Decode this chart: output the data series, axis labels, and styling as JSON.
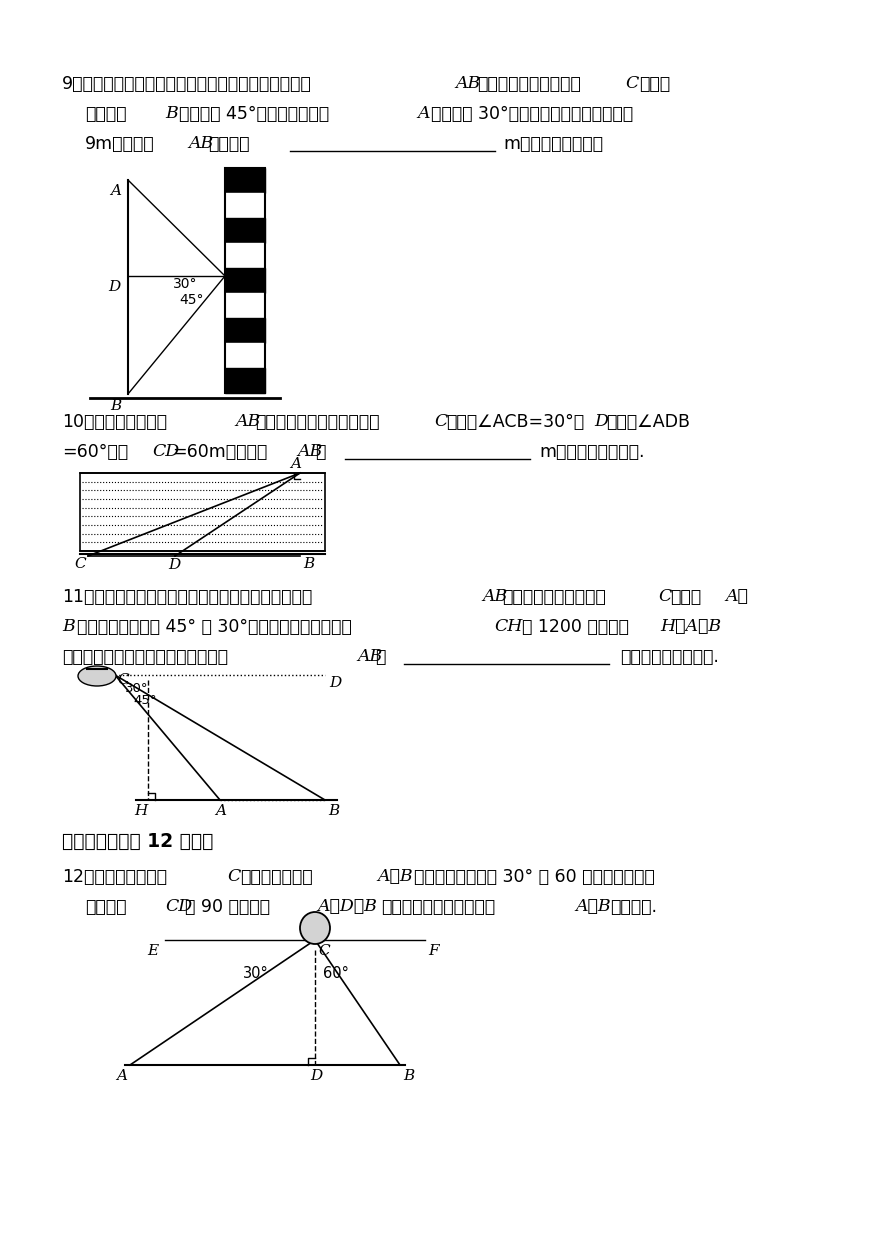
{
  "bg_color": "#ffffff",
  "text_color": "#000000",
  "page_width": 8.6,
  "page_height": 12.16
}
